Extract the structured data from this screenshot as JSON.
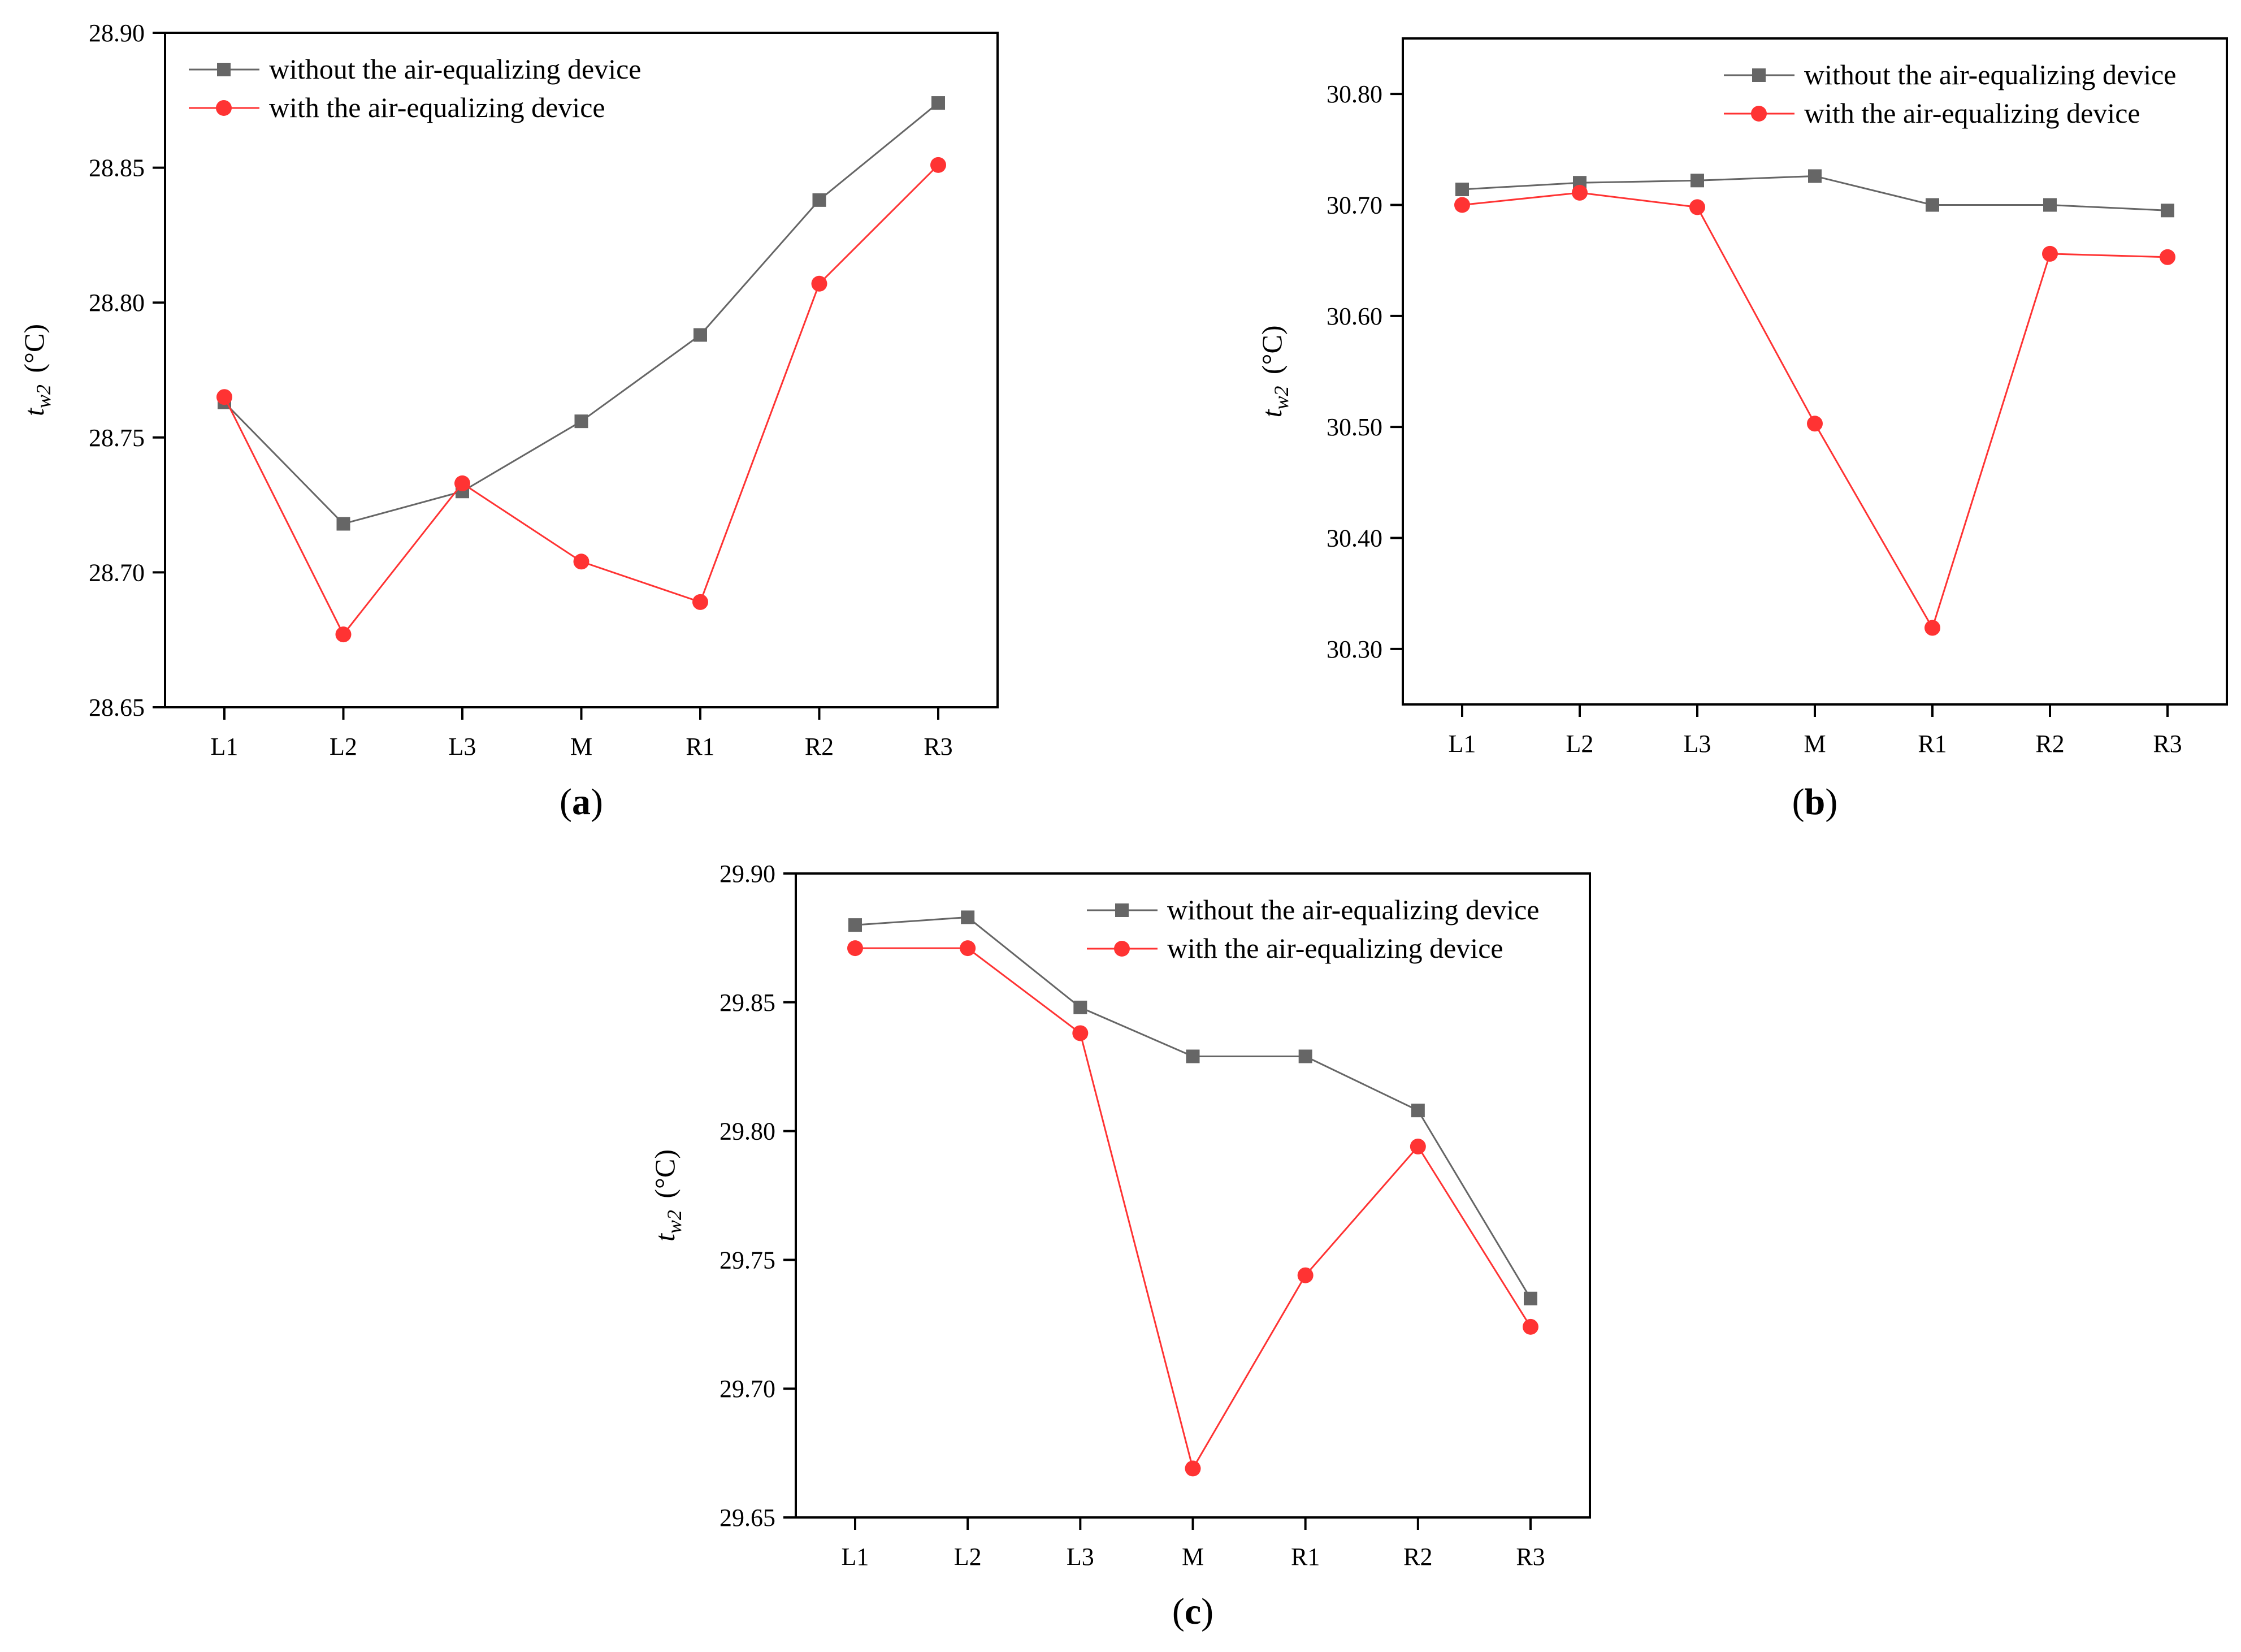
{
  "panels": [
    {
      "label": "a",
      "chart_data": {
        "type": "line",
        "categories": [
          "L1",
          "L2",
          "L3",
          "M",
          "R1",
          "R2",
          "R3"
        ],
        "ylabel": {
          "main": "t",
          "sub": "w2",
          "unit": "(°C)"
        },
        "ylim": [
          28.65,
          28.9
        ],
        "yticks": [
          "28.65",
          "28.70",
          "28.75",
          "28.80",
          "28.85",
          "28.90"
        ],
        "grid": false,
        "legend_position": "top-left",
        "series": [
          {
            "name": "without the air-equalizing device",
            "color": "#666666",
            "marker": "square",
            "values": [
              28.763,
              28.718,
              28.73,
              28.756,
              28.788,
              28.838,
              28.874
            ]
          },
          {
            "name": "with the air-equalizing device",
            "color": "#ff3333",
            "marker": "circle",
            "values": [
              28.765,
              28.677,
              28.733,
              28.704,
              28.689,
              28.807,
              28.851
            ]
          }
        ]
      }
    },
    {
      "label": "b",
      "chart_data": {
        "type": "line",
        "categories": [
          "L1",
          "L2",
          "L3",
          "M",
          "R1",
          "R2",
          "R3"
        ],
        "ylabel": {
          "main": "t",
          "sub": "w2",
          "unit": "(°C)"
        },
        "ylim": [
          30.25,
          30.85
        ],
        "yticks": [
          "30.30",
          "30.40",
          "30.50",
          "30.60",
          "30.70",
          "30.80"
        ],
        "grid": false,
        "legend_position": "top-right",
        "series": [
          {
            "name": "without the air-equalizing device",
            "color": "#666666",
            "marker": "square",
            "values": [
              30.714,
              30.72,
              30.722,
              30.726,
              30.7,
              30.7,
              30.695
            ]
          },
          {
            "name": "with the air-equalizing device",
            "color": "#ff3333",
            "marker": "circle",
            "values": [
              30.7,
              30.711,
              30.698,
              30.503,
              30.319,
              30.656,
              30.653
            ]
          }
        ]
      }
    },
    {
      "label": "c",
      "chart_data": {
        "type": "line",
        "categories": [
          "L1",
          "L2",
          "L3",
          "M",
          "R1",
          "R2",
          "R3"
        ],
        "ylabel": {
          "main": "t",
          "sub": "w2",
          "unit": "(°C)"
        },
        "ylim": [
          29.65,
          29.9
        ],
        "yticks": [
          "29.65",
          "29.70",
          "29.75",
          "29.80",
          "29.85",
          "29.90"
        ],
        "grid": false,
        "legend_position": "top-right",
        "series": [
          {
            "name": "without the air-equalizing device",
            "color": "#666666",
            "marker": "square",
            "values": [
              29.88,
              29.883,
              29.848,
              29.829,
              29.829,
              29.808,
              29.735
            ]
          },
          {
            "name": "with the air-equalizing device",
            "color": "#ff3333",
            "marker": "circle",
            "values": [
              29.871,
              29.871,
              29.838,
              29.669,
              29.744,
              29.794,
              29.724
            ]
          }
        ]
      }
    }
  ]
}
